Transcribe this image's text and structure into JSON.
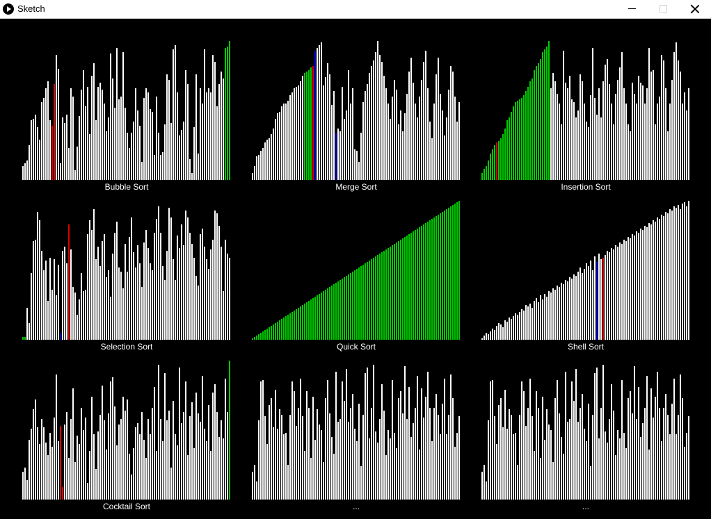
{
  "window": {
    "title": "Sketch"
  },
  "colors": {
    "normal": "#ffffff",
    "sorted": "#00cc00",
    "compare": "#dd0000",
    "swap": "#0000cc"
  },
  "panels": [
    {
      "label": "Bubble Sort",
      "heights": [
        0.1,
        0.12,
        0.14,
        0.25,
        0.43,
        0.44,
        0.47,
        0.38,
        0.29,
        0.56,
        0.59,
        0.66,
        0.71,
        0.43,
        0.39,
        0.69,
        0.9,
        0.8,
        0.12,
        0.45,
        0.41,
        0.47,
        0.23,
        0.66,
        0.6,
        0.07,
        0.24,
        0.46,
        0.65,
        0.79,
        0.53,
        0.67,
        0.33,
        0.75,
        0.84,
        0.43,
        0.67,
        0.7,
        0.65,
        0.55,
        0.35,
        0.45,
        0.91,
        0.73,
        0.52,
        0.95,
        0.58,
        0.6,
        0.92,
        0.52,
        0.34,
        0.23,
        0.34,
        0.42,
        0.66,
        0.5,
        0.39,
        0.13,
        0.59,
        0.66,
        0.63,
        0.51,
        0.49,
        0.18,
        0.6,
        0.34,
        0.18,
        0.2,
        0.4,
        0.76,
        0.72,
        0.41,
        0.94,
        0.97,
        0.63,
        0.32,
        0.36,
        0.42,
        0.79,
        0.69,
        0.15,
        0.05,
        0.38,
        0.76,
        0.19,
        0.66,
        0.55,
        0.94,
        0.63,
        0.66,
        0.63,
        0.9,
        0.85,
        0.53,
        0.69,
        0.78,
        0.73,
        0.95,
        0.96,
        1.0
      ],
      "states": {
        "14": "compare",
        "15": "compare",
        "97": "sorted",
        "98": "sorted",
        "99": "sorted"
      }
    },
    {
      "label": "Merge Sort",
      "heights": [
        0.05,
        0.1,
        0.17,
        0.18,
        0.21,
        0.23,
        0.27,
        0.29,
        0.3,
        0.33,
        0.37,
        0.44,
        0.48,
        0.49,
        0.53,
        0.55,
        0.55,
        0.57,
        0.61,
        0.63,
        0.66,
        0.67,
        0.68,
        0.71,
        0.75,
        0.77,
        0.78,
        0.79,
        0.81,
        0.82,
        0.93,
        0.95,
        0.97,
        0.99,
        0.68,
        0.74,
        0.84,
        0.76,
        0.54,
        0.64,
        0.34,
        0.37,
        0.35,
        0.67,
        0.44,
        0.5,
        0.79,
        0.55,
        0.66,
        0.22,
        0.21,
        0.13,
        0.34,
        0.56,
        0.64,
        0.69,
        0.77,
        0.82,
        0.86,
        0.92,
        1.0,
        0.9,
        0.85,
        0.75,
        0.66,
        0.55,
        0.44,
        0.6,
        0.72,
        0.65,
        0.4,
        0.5,
        0.35,
        0.48,
        0.62,
        0.78,
        0.88,
        0.7,
        0.55,
        0.45,
        0.6,
        0.72,
        0.85,
        0.93,
        0.66,
        0.42,
        0.3,
        0.55,
        0.76,
        0.88,
        0.62,
        0.5,
        0.32,
        0.45,
        0.65,
        0.82,
        0.78,
        0.6,
        0.42,
        0.56
      ],
      "states": {
        "25": "sorted",
        "26": "sorted",
        "27": "sorted",
        "28": "sorted",
        "29": "compare",
        "30": "swap",
        "40": "swap"
      }
    },
    {
      "label": "Insertion Sort",
      "heights": [
        0.05,
        0.08,
        0.1,
        0.14,
        0.19,
        0.22,
        0.25,
        0.27,
        0.28,
        0.3,
        0.33,
        0.37,
        0.43,
        0.45,
        0.49,
        0.53,
        0.56,
        0.57,
        0.58,
        0.59,
        0.61,
        0.64,
        0.67,
        0.71,
        0.73,
        0.79,
        0.82,
        0.84,
        0.87,
        0.92,
        0.94,
        0.96,
        1.0,
        0.66,
        0.77,
        0.71,
        0.62,
        0.55,
        0.4,
        0.93,
        0.7,
        0.66,
        0.75,
        0.58,
        0.56,
        0.45,
        0.5,
        0.76,
        0.71,
        0.55,
        0.42,
        0.38,
        0.61,
        0.95,
        0.59,
        0.47,
        0.66,
        0.45,
        0.71,
        0.83,
        0.87,
        0.69,
        0.55,
        0.4,
        0.62,
        0.72,
        0.81,
        0.92,
        0.66,
        0.55,
        0.4,
        0.35,
        0.7,
        0.62,
        0.55,
        0.75,
        0.7,
        0.68,
        0.55,
        0.66,
        0.95,
        0.78,
        0.79,
        0.4,
        0.55,
        0.6,
        0.9,
        0.86,
        0.66,
        0.35,
        0.55,
        0.72,
        0.92,
        0.99,
        0.86,
        0.78,
        0.55,
        0.63,
        0.5,
        0.66
      ],
      "states": {
        "0": "sorted",
        "1": "sorted",
        "2": "sorted",
        "3": "sorted",
        "4": "sorted",
        "5": "sorted",
        "6": "sorted",
        "7": "compare",
        "8": "sorted",
        "9": "sorted",
        "10": "sorted",
        "11": "sorted",
        "12": "sorted",
        "13": "sorted",
        "14": "sorted",
        "15": "sorted",
        "16": "sorted",
        "17": "sorted",
        "18": "sorted",
        "19": "sorted",
        "20": "sorted",
        "21": "sorted",
        "22": "sorted",
        "23": "sorted",
        "24": "sorted",
        "25": "sorted",
        "26": "sorted",
        "27": "sorted",
        "28": "sorted",
        "29": "sorted",
        "30": "sorted",
        "31": "sorted",
        "32": "sorted"
      }
    },
    {
      "label": "Selection Sort",
      "heights": [
        0.02,
        0.02,
        0.23,
        0.12,
        0.48,
        0.71,
        0.72,
        0.92,
        0.86,
        0.64,
        0.5,
        0.57,
        0.28,
        0.59,
        0.36,
        0.58,
        0.32,
        0.54,
        0.05,
        0.64,
        0.67,
        0.55,
        0.83,
        0.65,
        0.38,
        0.34,
        0.18,
        0.29,
        0.48,
        0.35,
        0.36,
        0.76,
        0.86,
        0.79,
        0.94,
        0.58,
        0.67,
        0.53,
        0.71,
        0.76,
        0.45,
        0.5,
        0.31,
        0.62,
        0.77,
        0.85,
        0.52,
        0.49,
        0.37,
        0.69,
        0.49,
        0.74,
        0.88,
        0.63,
        0.52,
        0.68,
        0.55,
        0.38,
        0.7,
        0.79,
        0.66,
        0.55,
        0.5,
        0.77,
        0.87,
        0.96,
        0.77,
        0.53,
        0.43,
        0.64,
        0.95,
        0.88,
        0.58,
        0.43,
        0.75,
        0.66,
        0.83,
        0.68,
        0.93,
        0.88,
        0.77,
        0.69,
        0.59,
        0.46,
        0.39,
        0.76,
        0.8,
        0.67,
        0.58,
        0.51,
        0.65,
        0.72,
        0.93,
        0.91,
        0.82,
        0.67,
        0.35,
        0.72,
        0.62,
        0.59
      ],
      "states": {
        "0": "sorted",
        "1": "sorted",
        "18": "swap",
        "22": "compare"
      }
    },
    {
      "label": "Quick Sort",
      "heights": [
        0.01,
        0.02,
        0.03,
        0.04,
        0.05,
        0.06,
        0.07,
        0.08,
        0.09,
        0.1,
        0.11,
        0.12,
        0.13,
        0.14,
        0.15,
        0.16,
        0.17,
        0.18,
        0.19,
        0.2,
        0.21,
        0.22,
        0.23,
        0.24,
        0.25,
        0.26,
        0.27,
        0.28,
        0.29,
        0.3,
        0.31,
        0.32,
        0.33,
        0.34,
        0.35,
        0.36,
        0.37,
        0.38,
        0.39,
        0.4,
        0.41,
        0.42,
        0.43,
        0.44,
        0.45,
        0.46,
        0.47,
        0.48,
        0.49,
        0.5,
        0.51,
        0.52,
        0.53,
        0.54,
        0.55,
        0.56,
        0.57,
        0.58,
        0.59,
        0.6,
        0.61,
        0.62,
        0.63,
        0.64,
        0.65,
        0.66,
        0.67,
        0.68,
        0.69,
        0.7,
        0.71,
        0.72,
        0.73,
        0.74,
        0.75,
        0.76,
        0.77,
        0.78,
        0.79,
        0.8,
        0.81,
        0.82,
        0.83,
        0.84,
        0.85,
        0.86,
        0.87,
        0.88,
        0.89,
        0.9,
        0.91,
        0.92,
        0.93,
        0.94,
        0.95,
        0.96,
        0.97,
        0.98,
        0.99,
        1.0
      ],
      "states": "all-sorted"
    },
    {
      "label": "Shell Sort",
      "heights": [
        0.01,
        0.03,
        0.05,
        0.04,
        0.06,
        0.08,
        0.07,
        0.1,
        0.12,
        0.11,
        0.09,
        0.14,
        0.13,
        0.16,
        0.15,
        0.17,
        0.19,
        0.18,
        0.2,
        0.22,
        0.21,
        0.25,
        0.24,
        0.26,
        0.23,
        0.28,
        0.3,
        0.27,
        0.32,
        0.29,
        0.33,
        0.31,
        0.35,
        0.34,
        0.37,
        0.36,
        0.39,
        0.38,
        0.41,
        0.4,
        0.43,
        0.42,
        0.45,
        0.44,
        0.47,
        0.46,
        0.49,
        0.52,
        0.48,
        0.51,
        0.55,
        0.53,
        0.57,
        0.5,
        0.6,
        0.56,
        0.62,
        0.58,
        0.59,
        0.61,
        0.64,
        0.63,
        0.66,
        0.65,
        0.68,
        0.67,
        0.7,
        0.69,
        0.72,
        0.71,
        0.74,
        0.73,
        0.76,
        0.75,
        0.78,
        0.77,
        0.8,
        0.79,
        0.82,
        0.81,
        0.84,
        0.83,
        0.86,
        0.85,
        0.88,
        0.87,
        0.9,
        0.89,
        0.92,
        0.91,
        0.94,
        0.93,
        0.96,
        0.95,
        0.97,
        0.94,
        0.98,
        0.99,
        0.96,
        1.0
      ],
      "states": {
        "55": "swap",
        "58": "compare"
      }
    },
    {
      "label": "Cocktail Sort",
      "heights": [
        0.2,
        0.23,
        0.14,
        0.43,
        0.51,
        0.65,
        0.72,
        0.52,
        0.4,
        0.58,
        0.52,
        0.41,
        0.32,
        0.48,
        0.38,
        0.59,
        0.9,
        0.42,
        0.53,
        0.09,
        0.54,
        0.63,
        0.3,
        0.58,
        0.8,
        0.27,
        0.46,
        0.4,
        0.66,
        0.5,
        0.59,
        0.12,
        0.35,
        0.74,
        0.47,
        0.22,
        0.49,
        0.61,
        0.82,
        0.57,
        0.36,
        0.62,
        0.85,
        0.88,
        0.67,
        0.39,
        0.54,
        0.58,
        0.74,
        0.64,
        0.72,
        0.33,
        0.18,
        0.37,
        0.52,
        0.55,
        0.47,
        0.63,
        0.43,
        0.3,
        0.58,
        0.47,
        0.66,
        0.81,
        0.35,
        0.97,
        0.58,
        0.42,
        0.91,
        0.57,
        0.64,
        0.23,
        0.71,
        0.47,
        0.39,
        0.95,
        0.55,
        0.63,
        0.85,
        0.32,
        0.6,
        0.7,
        0.37,
        0.77,
        0.62,
        0.56,
        0.89,
        0.51,
        0.42,
        0.68,
        0.35,
        0.77,
        0.83,
        0.63,
        0.45,
        0.57,
        0.44,
        0.87,
        0.63,
        1.0
      ],
      "states": {
        "18": "compare",
        "19": "compare",
        "99": "sorted"
      }
    },
    {
      "label": "...",
      "heights": [
        0.2,
        0.25,
        0.13,
        0.57,
        0.85,
        0.86,
        0.6,
        0.4,
        0.68,
        0.73,
        0.52,
        0.79,
        0.51,
        0.65,
        0.61,
        0.47,
        0.48,
        0.25,
        0.61,
        0.85,
        0.78,
        0.53,
        0.66,
        0.87,
        0.6,
        0.35,
        0.78,
        0.66,
        0.3,
        0.74,
        0.43,
        0.65,
        0.54,
        0.5,
        0.27,
        0.73,
        0.86,
        0.62,
        0.45,
        0.33,
        0.92,
        0.56,
        0.58,
        0.85,
        0.71,
        0.94,
        0.56,
        0.66,
        0.76,
        0.51,
        0.42,
        0.69,
        0.24,
        0.61,
        0.91,
        0.95,
        0.44,
        0.66,
        0.97,
        0.49,
        0.41,
        0.58,
        0.83,
        0.64,
        0.32,
        0.5,
        0.44,
        0.86,
        0.48,
        0.37,
        0.73,
        0.78,
        0.62,
        0.96,
        0.58,
        0.81,
        0.45,
        0.55,
        0.66,
        0.89,
        0.36,
        0.8,
        0.59,
        0.74,
        0.92,
        0.66,
        0.42,
        0.66,
        0.76,
        0.61,
        0.47,
        0.69,
        0.87,
        0.47,
        0.61,
        0.9,
        0.73,
        0.38,
        0.48,
        0.6
      ],
      "states": {}
    },
    {
      "label": "...",
      "heights": [
        0.2,
        0.25,
        0.13,
        0.57,
        0.85,
        0.86,
        0.6,
        0.4,
        0.68,
        0.73,
        0.52,
        0.79,
        0.51,
        0.65,
        0.61,
        0.47,
        0.48,
        0.25,
        0.61,
        0.85,
        0.78,
        0.53,
        0.66,
        0.87,
        0.6,
        0.35,
        0.78,
        0.66,
        0.3,
        0.74,
        0.43,
        0.65,
        0.54,
        0.5,
        0.27,
        0.73,
        0.86,
        0.62,
        0.45,
        0.33,
        0.92,
        0.56,
        0.58,
        0.85,
        0.71,
        0.94,
        0.56,
        0.66,
        0.76,
        0.51,
        0.42,
        0.69,
        0.24,
        0.61,
        0.91,
        0.95,
        0.44,
        0.66,
        0.97,
        0.49,
        0.41,
        0.58,
        0.83,
        0.64,
        0.32,
        0.5,
        0.44,
        0.86,
        0.48,
        0.37,
        0.73,
        0.78,
        0.62,
        0.96,
        0.58,
        0.81,
        0.45,
        0.55,
        0.66,
        0.89,
        0.36,
        0.8,
        0.59,
        0.74,
        0.92,
        0.66,
        0.42,
        0.66,
        0.76,
        0.61,
        0.47,
        0.69,
        0.87,
        0.47,
        0.61,
        0.9,
        0.73,
        0.38,
        0.48,
        0.6
      ],
      "states": {}
    }
  ]
}
